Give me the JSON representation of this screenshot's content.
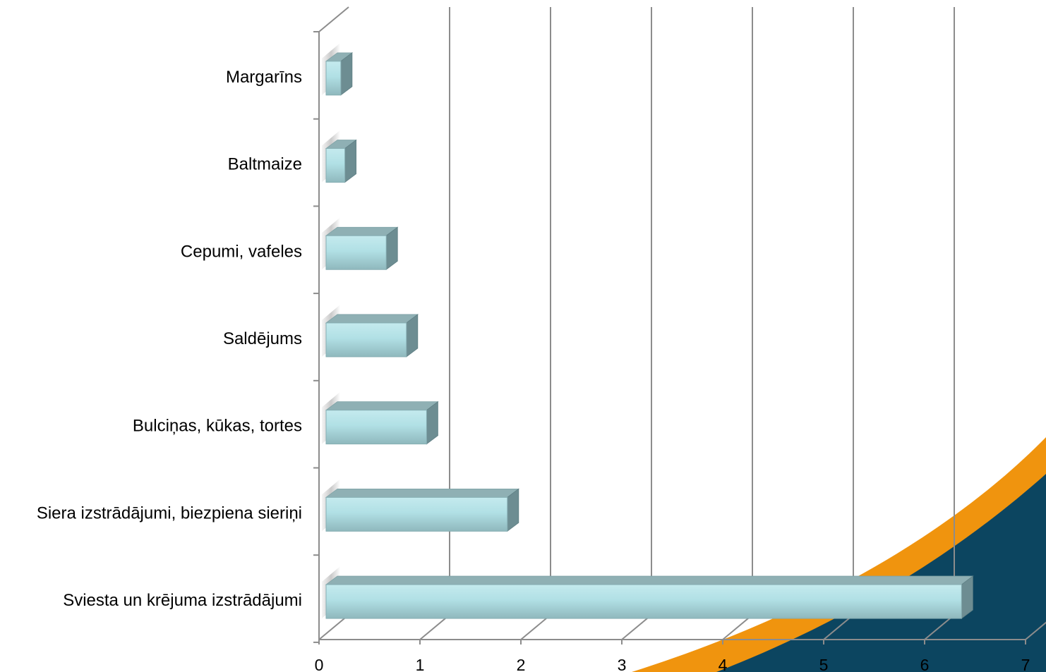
{
  "chart_data": {
    "type": "bar",
    "orientation": "horizontal",
    "style": "3d",
    "categories": [
      "Margarīns",
      "Baltmaize",
      "Cepumi, vafeles",
      "Saldējums",
      "Bulciņas, kūkas, tortes",
      "Siera izstrādājumi, biezpiena sieriņi",
      "Sviesta un krējuma izstrādājumi"
    ],
    "values": [
      0.16,
      0.2,
      0.61,
      0.81,
      1.01,
      1.81,
      6.31
    ],
    "x_ticks": [
      "0",
      "1",
      "2",
      "3",
      "4",
      "5",
      "6",
      "7"
    ],
    "xlim": [
      0,
      7
    ],
    "grid": true,
    "legend": "none",
    "colors": {
      "bar_front": "#a9dbe0",
      "bar_top": "#8fb0b4",
      "bar_side": "#6d8d92",
      "gridline": "#8c8c8c",
      "swoosh_orange": "#f0940e",
      "swoosh_navy": "#0c4560"
    }
  }
}
